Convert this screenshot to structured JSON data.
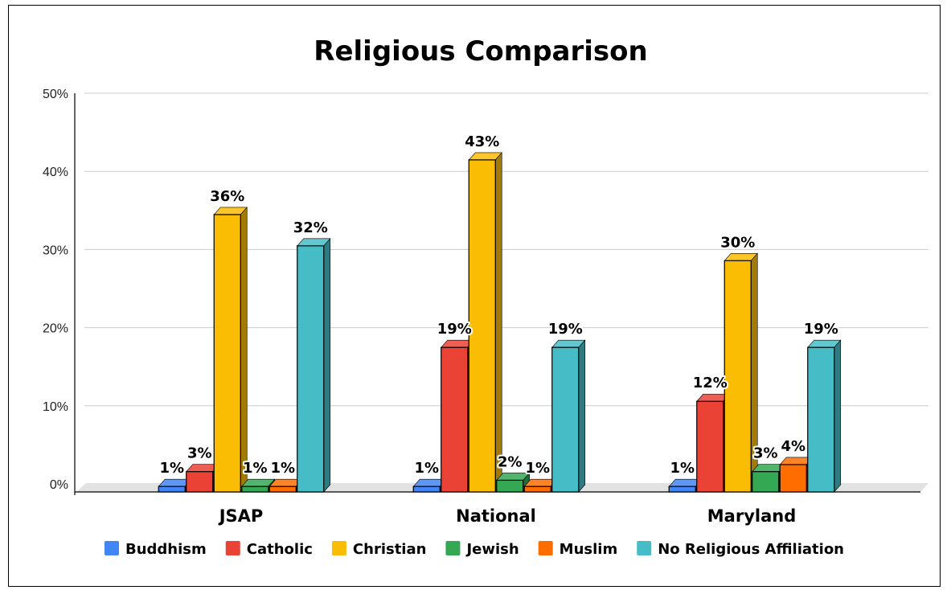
{
  "chart_data": {
    "type": "bar",
    "title": "Religious Comparison",
    "categories": [
      "JSAP",
      "National",
      "Maryland"
    ],
    "y_ticks": [
      "0%",
      "10%",
      "20%",
      "30%",
      "40%",
      "50%"
    ],
    "ylim": [
      0,
      50
    ],
    "grid": true,
    "legend_position": "bottom",
    "series": [
      {
        "name": "Buddhism",
        "color": "#4285f4",
        "values": [
          0.7,
          0.7,
          0.7
        ],
        "labels": [
          "1%",
          "1%",
          "1%"
        ]
      },
      {
        "name": "Catholic",
        "color": "#ea4335",
        "values": [
          2.6,
          18.5,
          11.6
        ],
        "labels": [
          "3%",
          "19%",
          "12%"
        ]
      },
      {
        "name": "Christian",
        "color": "#fbbc04",
        "values": [
          35.5,
          42.5,
          29.6
        ],
        "labels": [
          "36%",
          "43%",
          "30%"
        ]
      },
      {
        "name": "Jewish",
        "color": "#34a853",
        "values": [
          0.7,
          1.5,
          2.6
        ],
        "labels": [
          "1%",
          "2%",
          "3%"
        ]
      },
      {
        "name": "Muslim",
        "color": "#ff6d01",
        "values": [
          0.7,
          0.7,
          3.5
        ],
        "labels": [
          "1%",
          "1%",
          "4%"
        ]
      },
      {
        "name": "No Religious Affiliation",
        "color": "#46bdc6",
        "values": [
          31.5,
          18.5,
          18.5
        ],
        "labels": [
          "32%",
          "19%",
          "19%"
        ]
      }
    ]
  }
}
